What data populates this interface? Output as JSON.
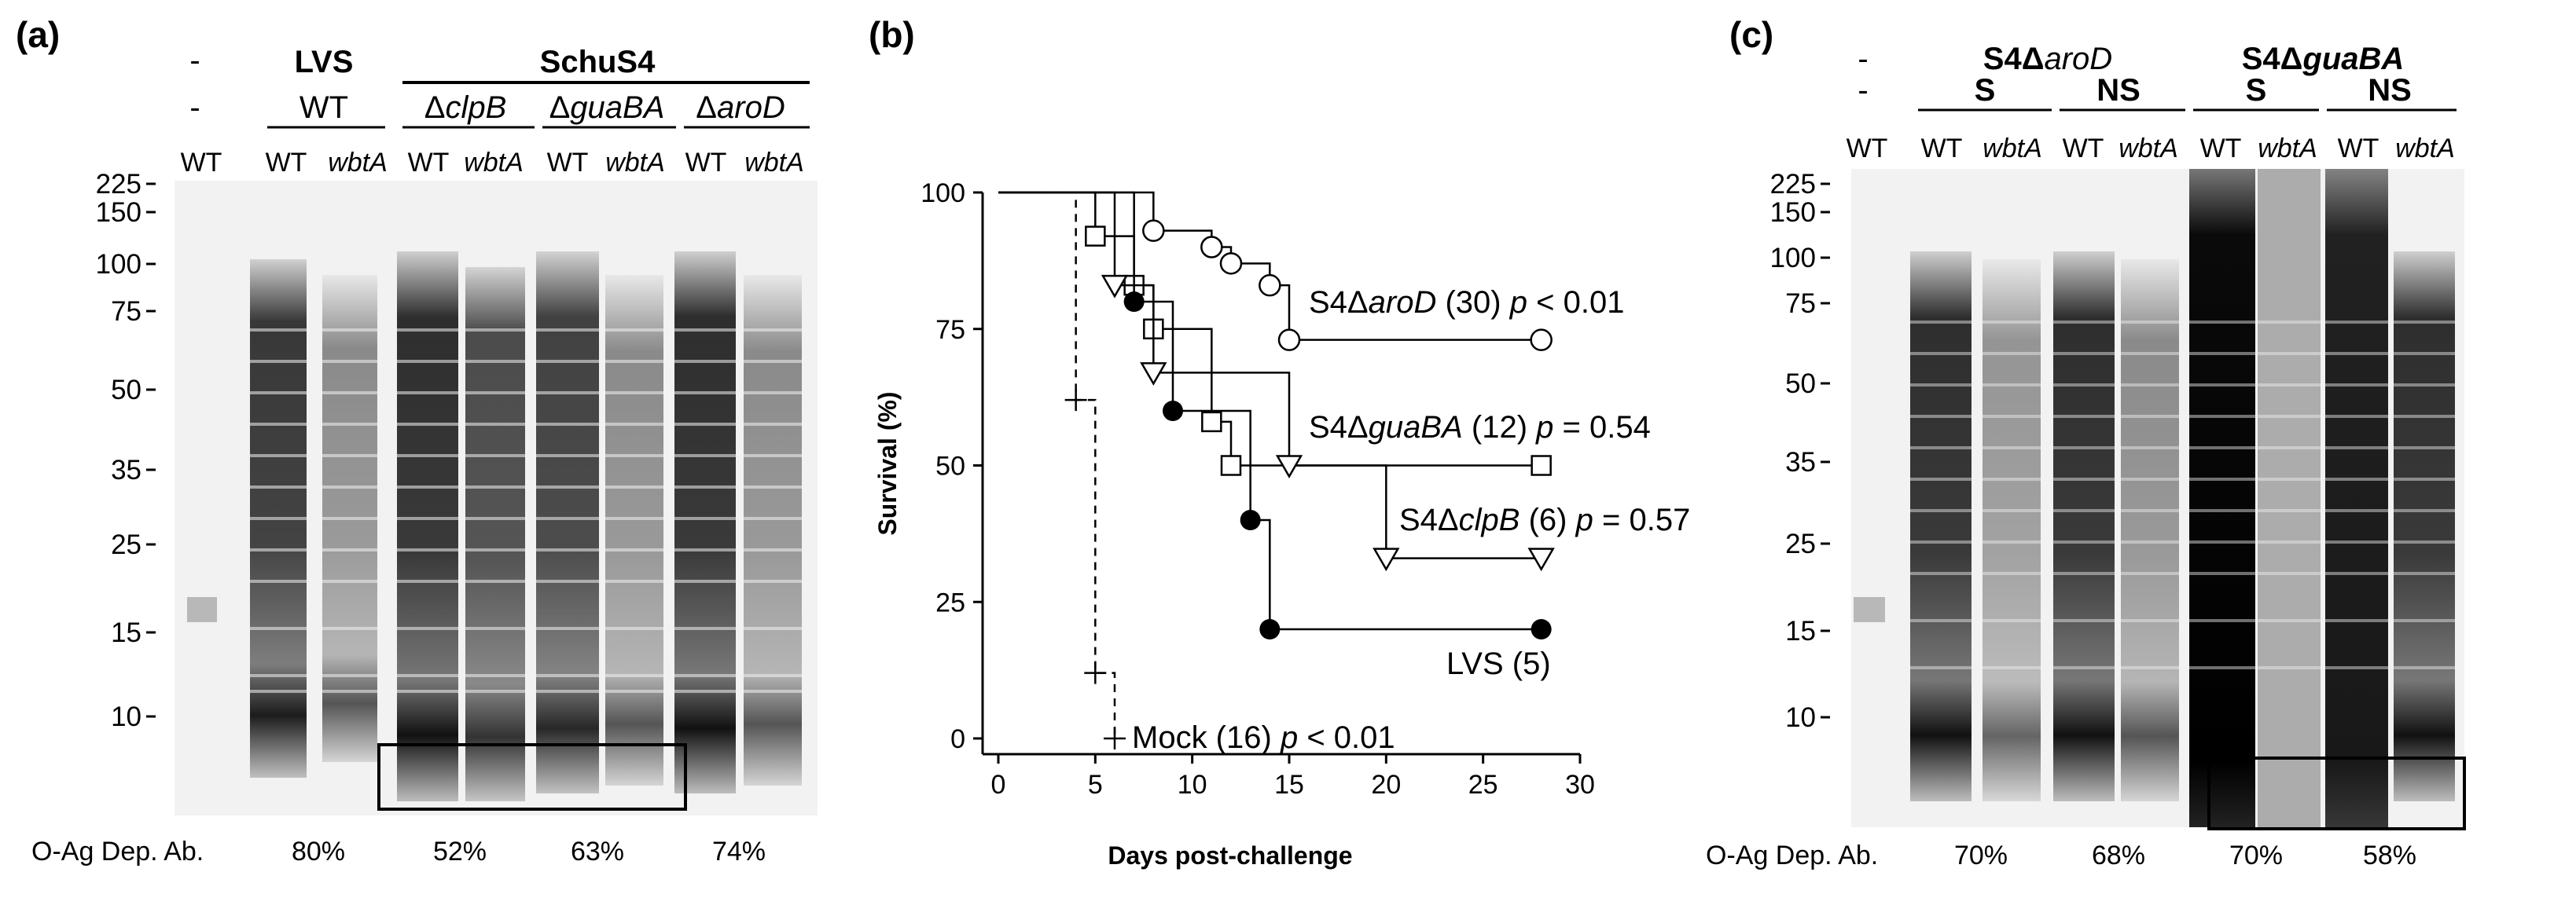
{
  "panel_a": {
    "letter": "(a)",
    "top_labels": [
      "-",
      "-",
      "LVS",
      "WT",
      "SchuS4"
    ],
    "strains": [
      {
        "sym": "Δ",
        "gene": "clpB"
      },
      {
        "sym": "Δ",
        "gene": "guaBA"
      },
      {
        "sym": "Δ",
        "gene": "aroD"
      }
    ],
    "lane_labels": [
      "WT",
      "WT",
      "wbtA",
      "WT",
      "wbtA",
      "WT",
      "wbtA",
      "WT",
      "wbtA"
    ],
    "mw_markers": [
      "225",
      "150",
      "100",
      "75",
      "50",
      "35",
      "25",
      "15",
      "10"
    ],
    "footer_label": "O-Ag Dep. Ab.",
    "percentages": [
      "80%",
      "52%",
      "63%",
      "74%"
    ]
  },
  "panel_b": {
    "letter": "(b)",
    "chart_data": {
      "type": "line",
      "subtype": "kaplan-meier",
      "xlabel": "Days post-challenge",
      "ylabel": "Survival (%)",
      "xlim": [
        0,
        30
      ],
      "ylim": [
        0,
        100
      ],
      "xticks": [
        "0",
        "5",
        "10",
        "15",
        "20",
        "25",
        "30"
      ],
      "yticks": [
        "0",
        "25",
        "50",
        "75",
        "100"
      ],
      "series": [
        {
          "name": "S4ΔaroD",
          "n": "(30)",
          "p": "p < 0.01",
          "marker": "open-circle",
          "x": [
            0,
            8,
            11,
            12,
            14,
            15,
            28
          ],
          "y": [
            100,
            93,
            90,
            87,
            83,
            73,
            73
          ]
        },
        {
          "name": "S4ΔguaBA",
          "n": "(12)",
          "p": "p = 0.54",
          "marker": "open-square",
          "x": [
            0,
            5,
            7,
            8,
            11,
            12,
            28
          ],
          "y": [
            100,
            92,
            83,
            75,
            58,
            50,
            50
          ]
        },
        {
          "name": "S4ΔclpB",
          "n": "(6)",
          "p": "p = 0.57",
          "marker": "open-triangle",
          "x": [
            0,
            6,
            8,
            15,
            20,
            28
          ],
          "y": [
            100,
            83,
            67,
            50,
            33,
            33
          ]
        },
        {
          "name": "LVS",
          "n": "(5)",
          "p": "",
          "marker": "filled-circle",
          "x": [
            0,
            7,
            9,
            13,
            14,
            28
          ],
          "y": [
            100,
            80,
            60,
            40,
            20,
            20
          ]
        },
        {
          "name": "Mock",
          "n": "(16)",
          "p": "p < 0.01",
          "marker": "plus",
          "x": [
            0,
            4,
            5,
            6
          ],
          "y": [
            100,
            62,
            12,
            0
          ]
        }
      ],
      "labels": {
        "aroD": {
          "pre": "S4Δ",
          "gene": "aroD",
          "n": "(30)",
          "p_var": "p",
          "p_rest": "< 0.01"
        },
        "guaBA": {
          "pre": "S4Δ",
          "gene": "guaBA",
          "n": "(12)",
          "p_var": "p",
          "p_rest": "= 0.54"
        },
        "clpB": {
          "pre": "S4Δ",
          "gene": "clpB",
          "n": "(6)",
          "p_var": "p",
          "p_rest": "= 0.57"
        },
        "lvs": {
          "text": "LVS (5)"
        },
        "mock": {
          "pre": "Mock (16)",
          "p_var": "p",
          "p_rest": "< 0.01"
        }
      }
    }
  },
  "panel_c": {
    "letter": "(c)",
    "groups": [
      {
        "pre": "S4Δ",
        "gene": "aroD"
      },
      {
        "pre": "S4Δ",
        "gene": "guaBA"
      }
    ],
    "dashes": [
      "-",
      "-"
    ],
    "subgroups": [
      "S",
      "NS",
      "S",
      "NS"
    ],
    "lane_labels": [
      "WT",
      "WT",
      "wbtA",
      "WT",
      "wbtA",
      "WT",
      "wbtA",
      "WT",
      "wbtA"
    ],
    "mw_markers": [
      "225",
      "150",
      "100",
      "75",
      "50",
      "35",
      "25",
      "15",
      "10"
    ],
    "footer_label": "O-Ag Dep. Ab.",
    "percentages": [
      "70%",
      "68%",
      "70%",
      "58%"
    ]
  }
}
